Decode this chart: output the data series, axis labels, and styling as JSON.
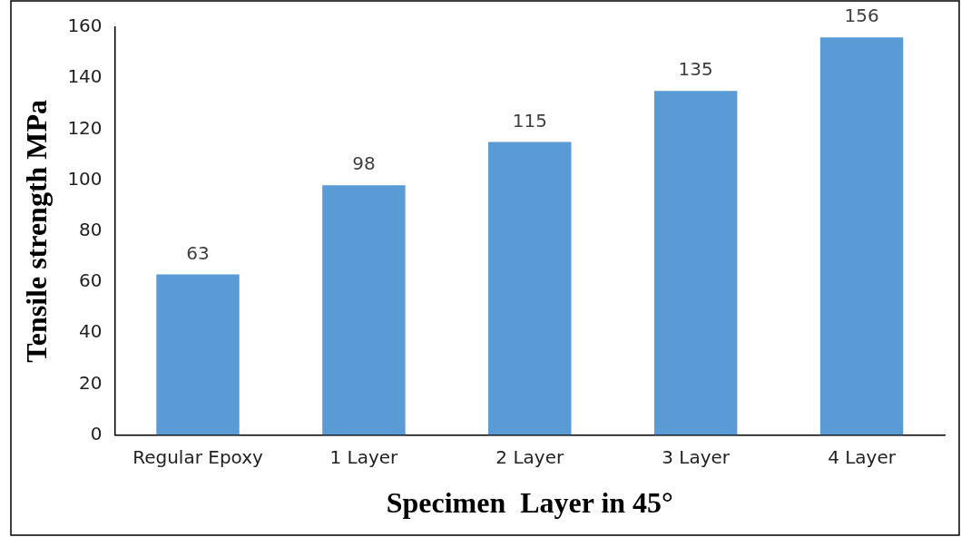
{
  "chart_data": {
    "type": "bar",
    "xlabel": "Specimen  Layer in 45°",
    "ylabel": "Tensile strength MPa",
    "categories": [
      "Regular Epoxy",
      "1 Layer",
      "2 Layer",
      "3 Layer",
      "4 Layer"
    ],
    "values": [
      63,
      98,
      115,
      135,
      156
    ],
    "color": "#5b9bd5",
    "ylim": [
      0,
      160
    ],
    "yticks": [
      0,
      20,
      40,
      60,
      80,
      100,
      120,
      140,
      160
    ],
    "grid": false,
    "legend": false,
    "data_labels": true
  }
}
